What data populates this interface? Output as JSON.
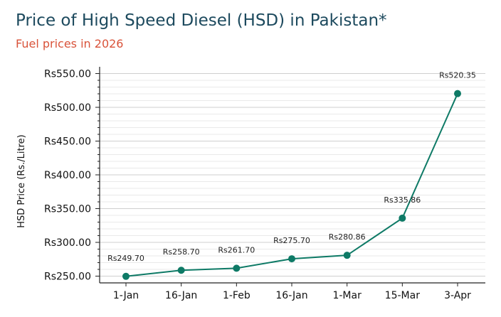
{
  "chart_data": {
    "type": "line",
    "title": "Price of High Speed Diesel (HSD) in Pakistan*",
    "subtitle": "Fuel prices in 2026",
    "xlabel": "",
    "ylabel": "HSD Price (Rs./Litre)",
    "categories": [
      "1-Jan",
      "16-Jan",
      "1-Feb",
      "16-Jan",
      "1-Mar",
      "15-Mar",
      "3-Apr"
    ],
    "values": [
      249.7,
      258.7,
      261.7,
      275.7,
      280.86,
      335.86,
      520.35
    ],
    "data_labels": [
      "Rs249.70",
      "Rs258.70",
      "Rs261.70",
      "Rs275.70",
      "Rs280.86",
      "Rs335.86",
      "Rs520.35"
    ],
    "y_ticks": [
      250,
      300,
      350,
      400,
      450,
      500,
      550
    ],
    "y_tick_labels": [
      "Rs250.00",
      "Rs300.00",
      "Rs350.00",
      "Rs400.00",
      "Rs450.00",
      "Rs500.00",
      "Rs550.00"
    ],
    "ylim": [
      240,
      560
    ],
    "grid": true,
    "series_color": "#0e7a66"
  }
}
